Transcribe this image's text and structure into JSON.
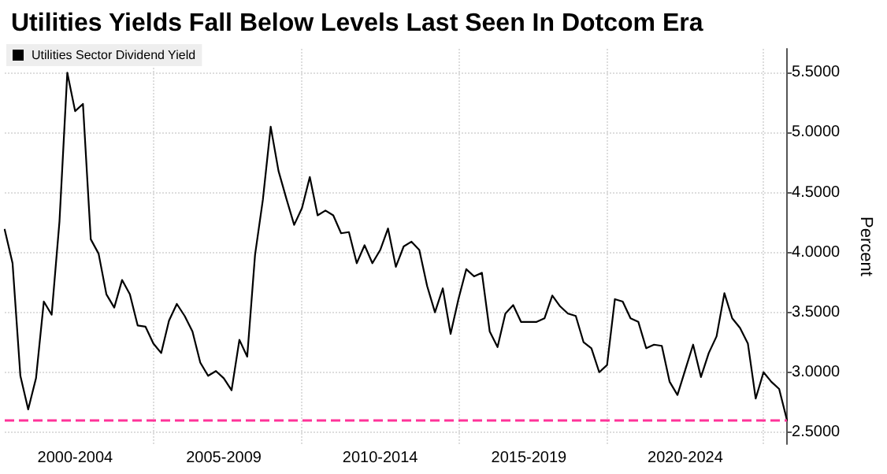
{
  "chart_data": {
    "type": "line",
    "title": "Utilities Yields Fall Below Levels Last Seen In Dotcom Era",
    "ylabel": "Percent",
    "series": [
      {
        "name": "Utilities Sector Dividend Yield",
        "color": "#000000",
        "values": [
          4.19,
          3.91,
          2.97,
          2.69,
          2.95,
          3.59,
          3.48,
          4.26,
          5.5,
          5.18,
          5.24,
          4.11,
          3.99,
          3.65,
          3.54,
          3.77,
          3.65,
          3.39,
          3.38,
          3.24,
          3.16,
          3.43,
          3.57,
          3.47,
          3.34,
          3.08,
          2.97,
          3.01,
          2.95,
          2.85,
          3.27,
          3.13,
          3.98,
          4.44,
          5.05,
          4.68,
          4.45,
          4.23,
          4.37,
          4.63,
          4.31,
          4.35,
          4.31,
          4.16,
          4.17,
          3.91,
          4.06,
          3.91,
          4.02,
          4.2,
          3.88,
          4.05,
          4.09,
          4.02,
          3.72,
          3.5,
          3.7,
          3.32,
          3.61,
          3.86,
          3.8,
          3.83,
          3.34,
          3.21,
          3.49,
          3.56,
          3.42,
          3.42,
          3.42,
          3.45,
          3.64,
          3.55,
          3.49,
          3.47,
          3.25,
          3.2,
          3.0,
          3.06,
          3.61,
          3.59,
          3.45,
          3.42,
          3.2,
          3.23,
          3.22,
          2.92,
          2.81,
          3.02,
          3.23,
          2.96,
          3.16,
          3.3,
          3.66,
          3.45,
          3.37,
          3.24,
          2.78,
          3.0,
          2.92,
          2.86,
          2.6
        ]
      }
    ],
    "categories": [
      null,
      null,
      null,
      null,
      null,
      null,
      null,
      null,
      null,
      "2000-2004",
      null,
      null,
      null,
      null,
      null,
      null,
      null,
      null,
      null,
      null,
      null,
      null,
      null,
      null,
      null,
      null,
      null,
      null,
      "2005-2009",
      null,
      null,
      null,
      null,
      null,
      null,
      null,
      null,
      null,
      null,
      null,
      null,
      null,
      null,
      null,
      null,
      null,
      null,
      null,
      "2010-2014",
      null,
      null,
      null,
      null,
      null,
      null,
      null,
      null,
      null,
      null,
      null,
      null,
      null,
      null,
      null,
      null,
      null,
      null,
      "2015-2019",
      null,
      null,
      null,
      null,
      null,
      null,
      null,
      null,
      null,
      null,
      null,
      null,
      null,
      null,
      null,
      null,
      null,
      null,
      null,
      "2020-2024",
      null,
      null,
      null,
      null,
      null,
      null,
      null,
      null,
      null,
      null,
      null,
      null,
      null
    ],
    "ylim": [
      2.4,
      5.7
    ],
    "yticks": [
      {
        "value": 2.5,
        "label": "2.5000"
      },
      {
        "value": 3,
        "label": "3.0000"
      },
      {
        "value": 3.5,
        "label": "3.5000"
      },
      {
        "value": 4,
        "label": "4.0000"
      },
      {
        "value": 4.5,
        "label": "4.5000"
      },
      {
        "value": 5,
        "label": "5.0000"
      },
      {
        "value": 5.5,
        "label": "5.5000"
      }
    ],
    "ref_lines": [
      {
        "axis": "y",
        "value": 2.6,
        "color": "#ff3399",
        "line_style": "dashed"
      }
    ],
    "grid": true,
    "legend": "top left",
    "marker": "none",
    "line_style": "solid"
  }
}
